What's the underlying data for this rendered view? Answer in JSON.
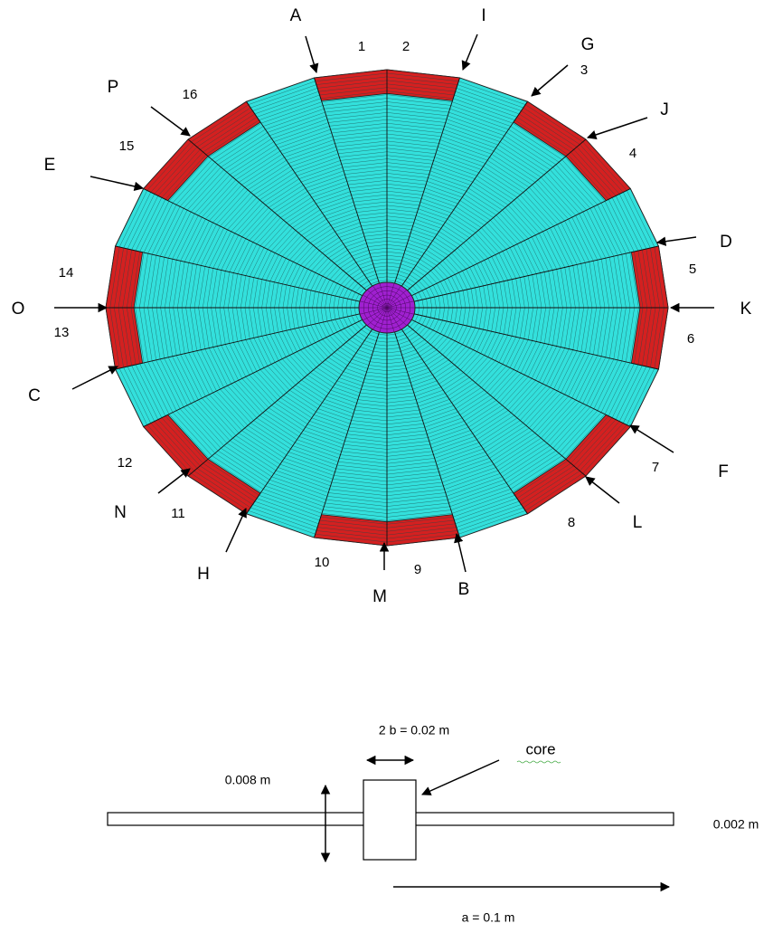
{
  "markers": {
    "A": "A",
    "B": "B",
    "C": "C",
    "D": "D",
    "E": "E",
    "F": "F",
    "G": "G",
    "H": "H",
    "I": "I",
    "J": "J",
    "K": "K",
    "L": "L",
    "M": "M",
    "N": "N",
    "O": "O",
    "P": "P"
  },
  "segments": [
    1,
    2,
    3,
    4,
    5,
    6,
    7,
    8,
    9,
    10,
    11,
    12,
    13,
    14,
    15,
    16
  ],
  "dimensions": {
    "core_width": "2 b  = 0.02 m",
    "core": "core",
    "core_height": "0.008 m",
    "thickness": "0.002 m",
    "length": "a = 0.1 m"
  }
}
